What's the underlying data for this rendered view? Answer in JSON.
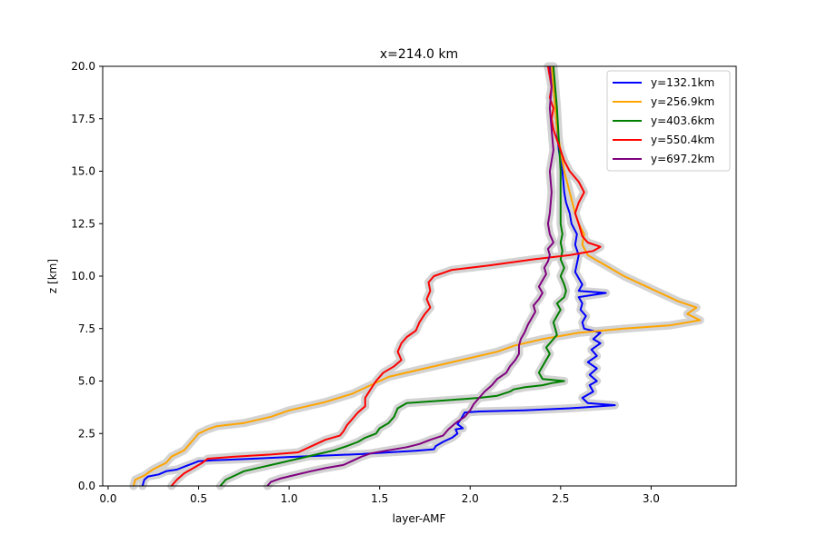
{
  "chart_data": {
    "type": "line",
    "title": "x=214.0 km",
    "xlabel": "layer-AMF",
    "ylabel": "z [km]",
    "xlim": [
      -0.03,
      3.47
    ],
    "ylim": [
      0,
      20
    ],
    "xticks": [
      0.0,
      0.5,
      1.0,
      1.5,
      2.0,
      2.5,
      3.0
    ],
    "xtick_labels": [
      "0.0",
      "0.5",
      "1.0",
      "1.5",
      "2.0",
      "2.5",
      "3.0"
    ],
    "yticks": [
      0.0,
      2.5,
      5.0,
      7.5,
      10.0,
      12.5,
      15.0,
      17.5,
      20.0
    ],
    "ytick_labels": [
      "0.0",
      "2.5",
      "5.0",
      "7.5",
      "10.0",
      "12.5",
      "15.0",
      "17.5",
      "20.0"
    ],
    "grid": false,
    "legend": "top-right",
    "uncertainty_band_color": "#d3d3d3",
    "series": [
      {
        "name": "y=132.1km",
        "color": "#0000ff",
        "points": [
          [
            0.19,
            0.0
          ],
          [
            0.2,
            0.3
          ],
          [
            0.22,
            0.45
          ],
          [
            0.28,
            0.55
          ],
          [
            0.32,
            0.7
          ],
          [
            0.38,
            0.78
          ],
          [
            0.43,
            0.95
          ],
          [
            0.47,
            1.08
          ],
          [
            0.5,
            1.18
          ],
          [
            0.58,
            1.22
          ],
          [
            0.8,
            1.3
          ],
          [
            1.0,
            1.38
          ],
          [
            1.2,
            1.45
          ],
          [
            1.4,
            1.52
          ],
          [
            1.55,
            1.6
          ],
          [
            1.7,
            1.68
          ],
          [
            1.8,
            1.75
          ],
          [
            1.81,
            1.9
          ],
          [
            1.85,
            2.1
          ],
          [
            1.9,
            2.3
          ],
          [
            1.93,
            2.5
          ],
          [
            1.92,
            2.7
          ],
          [
            1.96,
            2.75
          ],
          [
            1.93,
            2.95
          ],
          [
            1.95,
            3.2
          ],
          [
            1.97,
            3.5
          ],
          [
            2.05,
            3.55
          ],
          [
            2.3,
            3.6
          ],
          [
            2.55,
            3.7
          ],
          [
            2.8,
            3.85
          ],
          [
            2.65,
            3.95
          ],
          [
            2.62,
            4.2
          ],
          [
            2.68,
            4.5
          ],
          [
            2.66,
            4.8
          ],
          [
            2.7,
            5.0
          ],
          [
            2.66,
            5.3
          ],
          [
            2.7,
            5.6
          ],
          [
            2.65,
            5.9
          ],
          [
            2.7,
            6.2
          ],
          [
            2.67,
            6.5
          ],
          [
            2.72,
            6.8
          ],
          [
            2.68,
            7.0
          ],
          [
            2.72,
            7.3
          ],
          [
            2.63,
            7.5
          ],
          [
            2.62,
            7.8
          ],
          [
            2.64,
            8.1
          ],
          [
            2.61,
            8.4
          ],
          [
            2.62,
            8.7
          ],
          [
            2.6,
            9.0
          ],
          [
            2.75,
            9.2
          ],
          [
            2.6,
            9.3
          ],
          [
            2.62,
            9.6
          ],
          [
            2.6,
            9.9
          ],
          [
            2.58,
            10.2
          ],
          [
            2.59,
            10.6
          ],
          [
            2.6,
            11.0
          ],
          [
            2.58,
            11.5
          ],
          [
            2.59,
            12.0
          ],
          [
            2.56,
            12.5
          ],
          [
            2.55,
            13.0
          ],
          [
            2.53,
            13.5
          ],
          [
            2.52,
            14.0
          ],
          [
            2.51,
            15.0
          ],
          [
            2.49,
            16.0
          ],
          [
            2.48,
            17.0
          ],
          [
            2.47,
            18.0
          ],
          [
            2.46,
            19.0
          ],
          [
            2.45,
            20.0
          ]
        ]
      },
      {
        "name": "y=256.9km",
        "color": "#ffa500",
        "points": [
          [
            0.14,
            0.0
          ],
          [
            0.15,
            0.3
          ],
          [
            0.2,
            0.5
          ],
          [
            0.25,
            0.8
          ],
          [
            0.32,
            1.1
          ],
          [
            0.35,
            1.4
          ],
          [
            0.42,
            1.7
          ],
          [
            0.45,
            2.0
          ],
          [
            0.48,
            2.3
          ],
          [
            0.5,
            2.5
          ],
          [
            0.55,
            2.7
          ],
          [
            0.6,
            2.85
          ],
          [
            0.75,
            3.0
          ],
          [
            0.9,
            3.3
          ],
          [
            1.0,
            3.6
          ],
          [
            1.1,
            3.8
          ],
          [
            1.2,
            4.0
          ],
          [
            1.35,
            4.4
          ],
          [
            1.45,
            4.8
          ],
          [
            1.55,
            5.2
          ],
          [
            1.7,
            5.5
          ],
          [
            1.85,
            5.8
          ],
          [
            2.0,
            6.1
          ],
          [
            2.15,
            6.4
          ],
          [
            2.25,
            6.7
          ],
          [
            2.4,
            7.0
          ],
          [
            2.6,
            7.3
          ],
          [
            2.85,
            7.5
          ],
          [
            3.1,
            7.65
          ],
          [
            3.27,
            7.9
          ],
          [
            3.2,
            8.2
          ],
          [
            3.25,
            8.5
          ],
          [
            3.15,
            8.8
          ],
          [
            3.05,
            9.2
          ],
          [
            2.95,
            9.6
          ],
          [
            2.85,
            10.0
          ],
          [
            2.75,
            10.5
          ],
          [
            2.65,
            11.0
          ],
          [
            2.62,
            11.5
          ],
          [
            2.63,
            12.0
          ],
          [
            2.6,
            12.5
          ],
          [
            2.58,
            13.0
          ],
          [
            2.55,
            14.0
          ],
          [
            2.52,
            15.0
          ],
          [
            2.5,
            16.0
          ],
          [
            2.48,
            17.0
          ],
          [
            2.47,
            18.0
          ],
          [
            2.46,
            19.0
          ],
          [
            2.45,
            20.0
          ]
        ]
      },
      {
        "name": "y=403.6km",
        "color": "#008000",
        "points": [
          [
            0.62,
            0.0
          ],
          [
            0.65,
            0.3
          ],
          [
            0.7,
            0.5
          ],
          [
            0.75,
            0.7
          ],
          [
            0.85,
            0.9
          ],
          [
            0.95,
            1.1
          ],
          [
            1.05,
            1.3
          ],
          [
            1.15,
            1.5
          ],
          [
            1.25,
            1.7
          ],
          [
            1.32,
            1.9
          ],
          [
            1.38,
            2.1
          ],
          [
            1.42,
            2.3
          ],
          [
            1.48,
            2.5
          ],
          [
            1.5,
            2.75
          ],
          [
            1.55,
            3.0
          ],
          [
            1.58,
            3.3
          ],
          [
            1.6,
            3.7
          ],
          [
            1.65,
            3.95
          ],
          [
            1.9,
            4.1
          ],
          [
            2.05,
            4.2
          ],
          [
            2.15,
            4.3
          ],
          [
            2.22,
            4.5
          ],
          [
            2.24,
            4.6
          ],
          [
            2.3,
            4.7
          ],
          [
            2.4,
            4.8
          ],
          [
            2.45,
            4.9
          ],
          [
            2.52,
            5.0
          ],
          [
            2.4,
            5.1
          ],
          [
            2.38,
            5.4
          ],
          [
            2.4,
            5.7
          ],
          [
            2.42,
            6.0
          ],
          [
            2.44,
            6.3
          ],
          [
            2.42,
            6.6
          ],
          [
            2.45,
            6.9
          ],
          [
            2.48,
            7.2
          ],
          [
            2.47,
            7.5
          ],
          [
            2.46,
            7.8
          ],
          [
            2.48,
            8.1
          ],
          [
            2.5,
            8.4
          ],
          [
            2.48,
            8.7
          ],
          [
            2.52,
            9.0
          ],
          [
            2.53,
            9.3
          ],
          [
            2.52,
            9.6
          ],
          [
            2.5,
            10.0
          ],
          [
            2.52,
            10.4
          ],
          [
            2.5,
            10.8
          ],
          [
            2.51,
            11.2
          ],
          [
            2.5,
            11.6
          ],
          [
            2.51,
            12.0
          ],
          [
            2.5,
            12.5
          ],
          [
            2.5,
            13.5
          ],
          [
            2.5,
            15.0
          ],
          [
            2.49,
            16.5
          ],
          [
            2.48,
            18.0
          ],
          [
            2.46,
            20.0
          ]
        ]
      },
      {
        "name": "y=550.4km",
        "color": "#ff0000",
        "points": [
          [
            0.35,
            0.0
          ],
          [
            0.38,
            0.3
          ],
          [
            0.42,
            0.6
          ],
          [
            0.47,
            0.85
          ],
          [
            0.52,
            1.1
          ],
          [
            0.55,
            1.3
          ],
          [
            0.7,
            1.4
          ],
          [
            0.9,
            1.5
          ],
          [
            1.05,
            1.6
          ],
          [
            1.1,
            1.8
          ],
          [
            1.15,
            2.0
          ],
          [
            1.2,
            2.2
          ],
          [
            1.28,
            2.4
          ],
          [
            1.3,
            2.6
          ],
          [
            1.32,
            2.9
          ],
          [
            1.35,
            3.2
          ],
          [
            1.38,
            3.5
          ],
          [
            1.42,
            3.8
          ],
          [
            1.42,
            4.2
          ],
          [
            1.45,
            4.6
          ],
          [
            1.48,
            5.0
          ],
          [
            1.52,
            5.4
          ],
          [
            1.58,
            5.7
          ],
          [
            1.62,
            6.0
          ],
          [
            1.6,
            6.4
          ],
          [
            1.62,
            6.8
          ],
          [
            1.65,
            7.1
          ],
          [
            1.7,
            7.4
          ],
          [
            1.72,
            7.8
          ],
          [
            1.75,
            8.2
          ],
          [
            1.78,
            8.5
          ],
          [
            1.76,
            8.9
          ],
          [
            1.78,
            9.3
          ],
          [
            1.77,
            9.7
          ],
          [
            1.8,
            10.0
          ],
          [
            1.9,
            10.3
          ],
          [
            2.1,
            10.5
          ],
          [
            2.35,
            10.8
          ],
          [
            2.55,
            11.0
          ],
          [
            2.68,
            11.2
          ],
          [
            2.72,
            11.4
          ],
          [
            2.65,
            11.6
          ],
          [
            2.62,
            11.9
          ],
          [
            2.6,
            12.5
          ],
          [
            2.58,
            13.0
          ],
          [
            2.6,
            13.5
          ],
          [
            2.63,
            14.0
          ],
          [
            2.6,
            14.5
          ],
          [
            2.55,
            15.0
          ],
          [
            2.52,
            15.5
          ],
          [
            2.5,
            16.0
          ],
          [
            2.48,
            16.5
          ],
          [
            2.46,
            17.0
          ],
          [
            2.45,
            17.5
          ],
          [
            2.46,
            18.0
          ],
          [
            2.44,
            18.5
          ],
          [
            2.45,
            19.0
          ],
          [
            2.43,
            20.0
          ]
        ]
      },
      {
        "name": "y=697.2km",
        "color": "#800080",
        "points": [
          [
            0.88,
            0.0
          ],
          [
            0.9,
            0.2
          ],
          [
            0.95,
            0.35
          ],
          [
            1.02,
            0.5
          ],
          [
            1.12,
            0.7
          ],
          [
            1.2,
            0.85
          ],
          [
            1.3,
            1.0
          ],
          [
            1.35,
            1.2
          ],
          [
            1.4,
            1.4
          ],
          [
            1.45,
            1.55
          ],
          [
            1.55,
            1.7
          ],
          [
            1.65,
            1.85
          ],
          [
            1.72,
            2.0
          ],
          [
            1.78,
            2.2
          ],
          [
            1.85,
            2.4
          ],
          [
            1.88,
            2.7
          ],
          [
            1.92,
            3.0
          ],
          [
            1.97,
            3.3
          ],
          [
            2.0,
            3.6
          ],
          [
            2.02,
            3.9
          ],
          [
            2.05,
            4.2
          ],
          [
            2.08,
            4.5
          ],
          [
            2.12,
            4.8
          ],
          [
            2.15,
            5.1
          ],
          [
            2.2,
            5.4
          ],
          [
            2.22,
            5.7
          ],
          [
            2.25,
            6.0
          ],
          [
            2.27,
            6.3
          ],
          [
            2.27,
            6.7
          ],
          [
            2.28,
            7.0
          ],
          [
            2.3,
            7.3
          ],
          [
            2.32,
            7.7
          ],
          [
            2.34,
            8.0
          ],
          [
            2.36,
            8.3
          ],
          [
            2.35,
            8.6
          ],
          [
            2.38,
            8.9
          ],
          [
            2.4,
            9.2
          ],
          [
            2.38,
            9.5
          ],
          [
            2.4,
            9.8
          ],
          [
            2.42,
            10.1
          ],
          [
            2.41,
            10.4
          ],
          [
            2.43,
            10.7
          ],
          [
            2.44,
            11.0
          ],
          [
            2.43,
            11.3
          ],
          [
            2.46,
            11.6
          ],
          [
            2.44,
            12.0
          ],
          [
            2.43,
            12.5
          ],
          [
            2.44,
            13.0
          ],
          [
            2.45,
            14.0
          ],
          [
            2.44,
            15.0
          ],
          [
            2.46,
            16.0
          ],
          [
            2.45,
            17.0
          ],
          [
            2.44,
            18.0
          ],
          [
            2.45,
            19.0
          ],
          [
            2.44,
            20.0
          ]
        ]
      }
    ]
  }
}
